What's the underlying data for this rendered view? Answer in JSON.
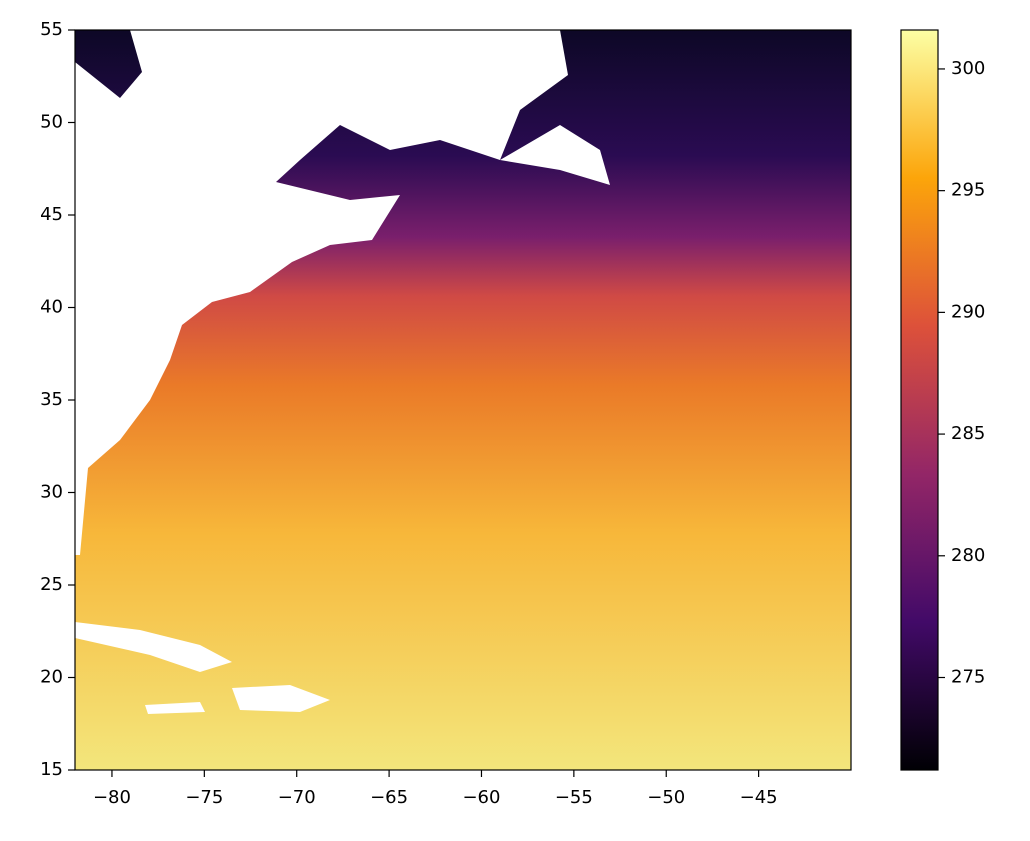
{
  "chart_data": {
    "type": "heatmap",
    "xlim": [
      -82,
      -40
    ],
    "ylim": [
      15,
      55
    ],
    "xticks": [
      {
        "value": -80,
        "label": "−80"
      },
      {
        "value": -75,
        "label": "−75"
      },
      {
        "value": -70,
        "label": "−70"
      },
      {
        "value": -65,
        "label": "−65"
      },
      {
        "value": -60,
        "label": "−60"
      },
      {
        "value": -55,
        "label": "−55"
      },
      {
        "value": -50,
        "label": "−50"
      },
      {
        "value": -45,
        "label": "−45"
      }
    ],
    "yticks": [
      15,
      20,
      25,
      30,
      35,
      40,
      45,
      50,
      55
    ],
    "colorbar": {
      "clim": [
        271.2,
        301.6
      ],
      "ticks": [
        275,
        280,
        285,
        290,
        295,
        300
      ],
      "colormap": [
        "#000004",
        "#420a68",
        "#932667",
        "#dd513a",
        "#fca50a",
        "#fcffa4"
      ]
    }
  }
}
